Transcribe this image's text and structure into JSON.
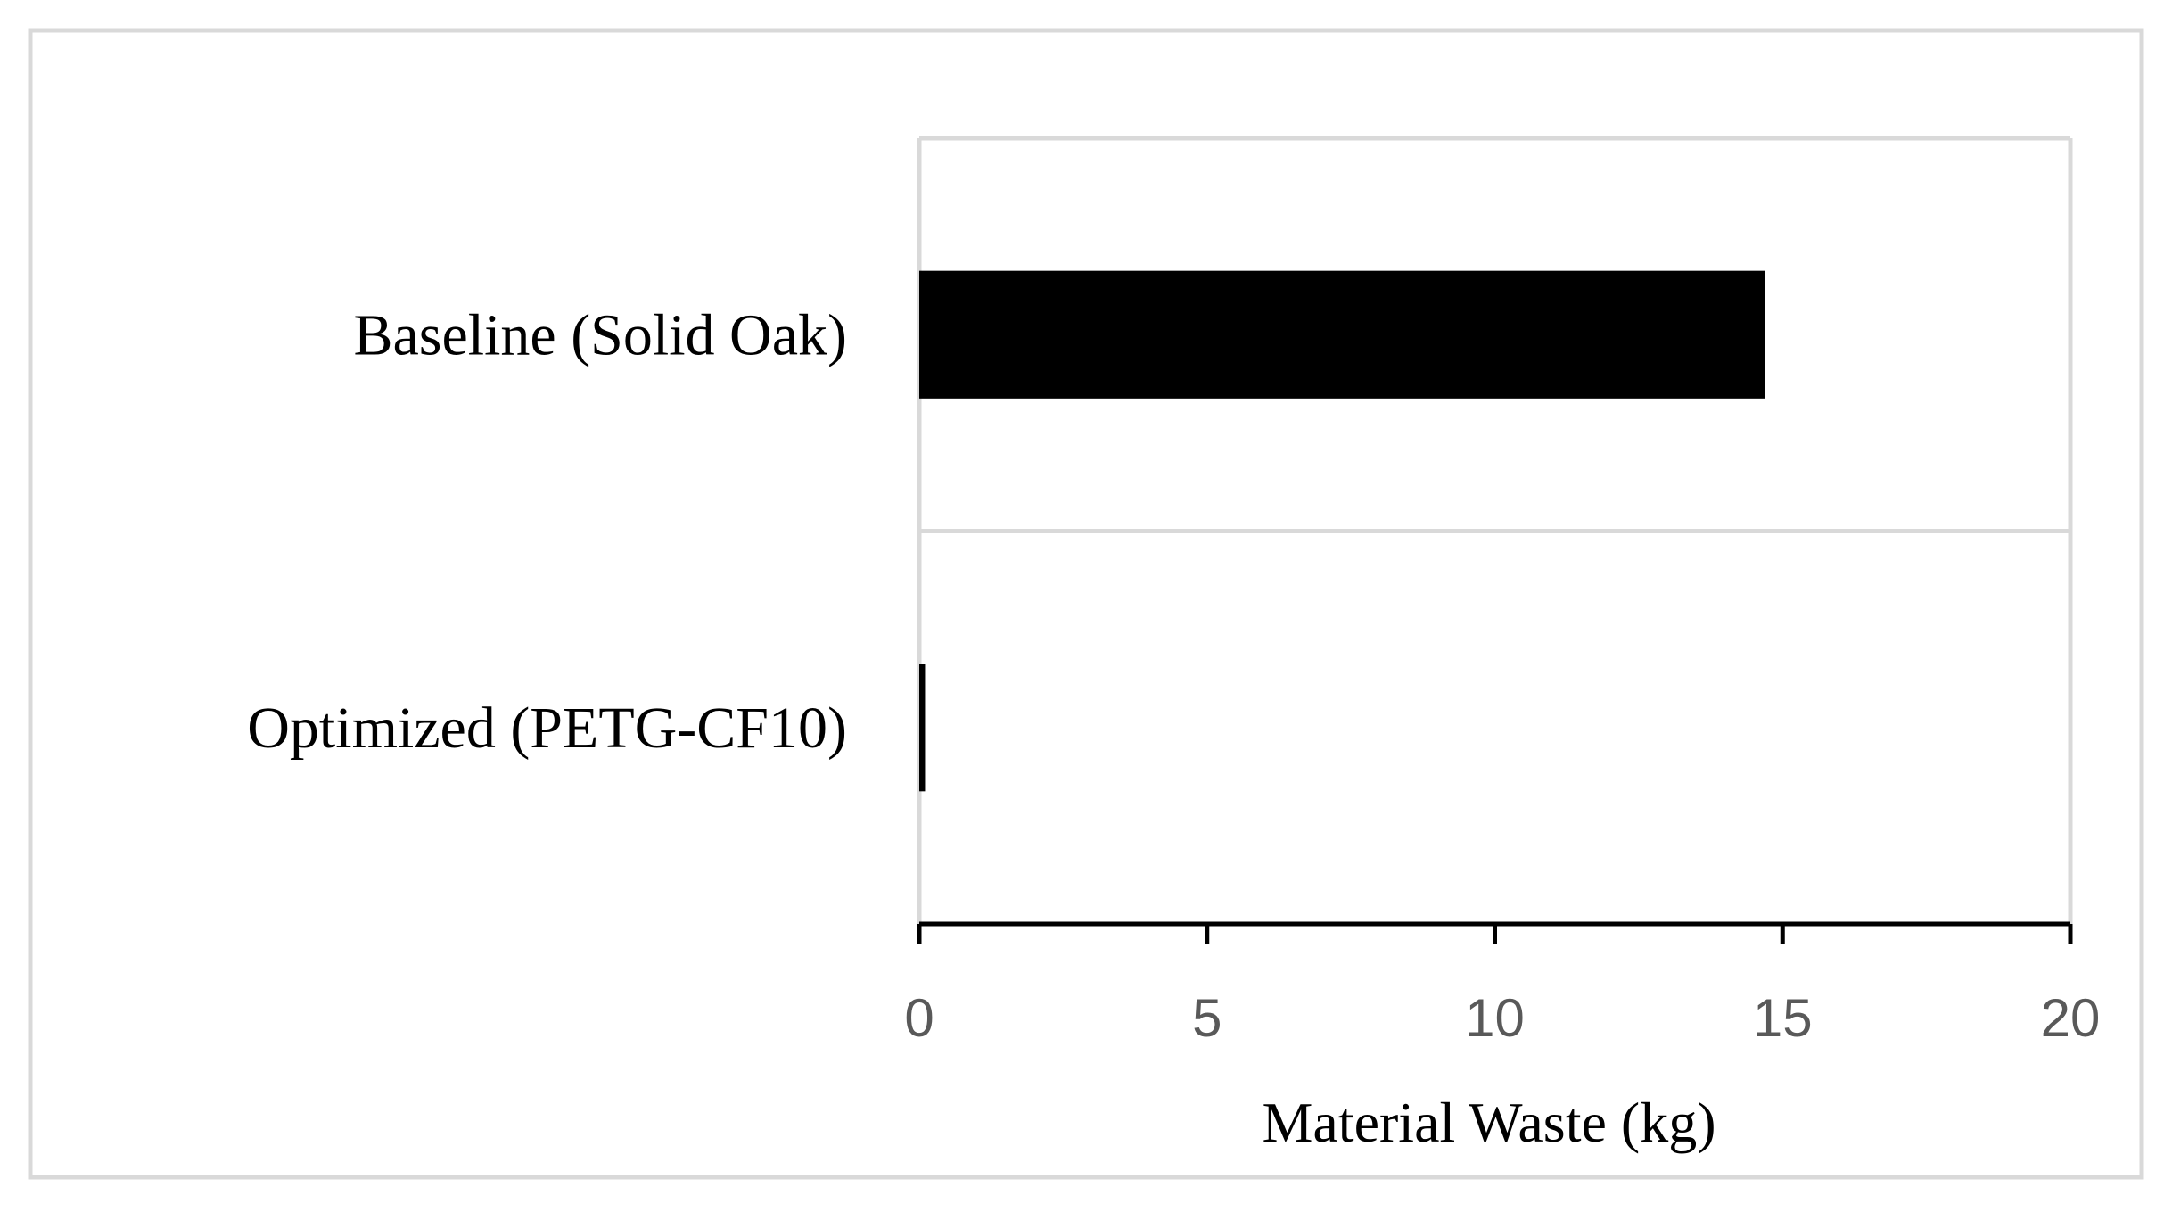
{
  "chart_data": {
    "type": "bar",
    "orientation": "horizontal",
    "categories": [
      "Baseline (Solid Oak)",
      "Optimized (PETG-CF10)"
    ],
    "values": [
      14.7,
      0.1
    ],
    "xlabel": "Material Waste (kg)",
    "ylabel": "",
    "xlim": [
      0,
      20
    ],
    "xticks": [
      "0",
      "5",
      "10",
      "15",
      "20"
    ],
    "grid": true,
    "legend": "none",
    "colors": {
      "bar": "#000000",
      "grid": "#d9d9d9",
      "axis": "#000000",
      "border": "#d9d9d9",
      "tick_text": "#595959",
      "text": "#000000"
    }
  }
}
